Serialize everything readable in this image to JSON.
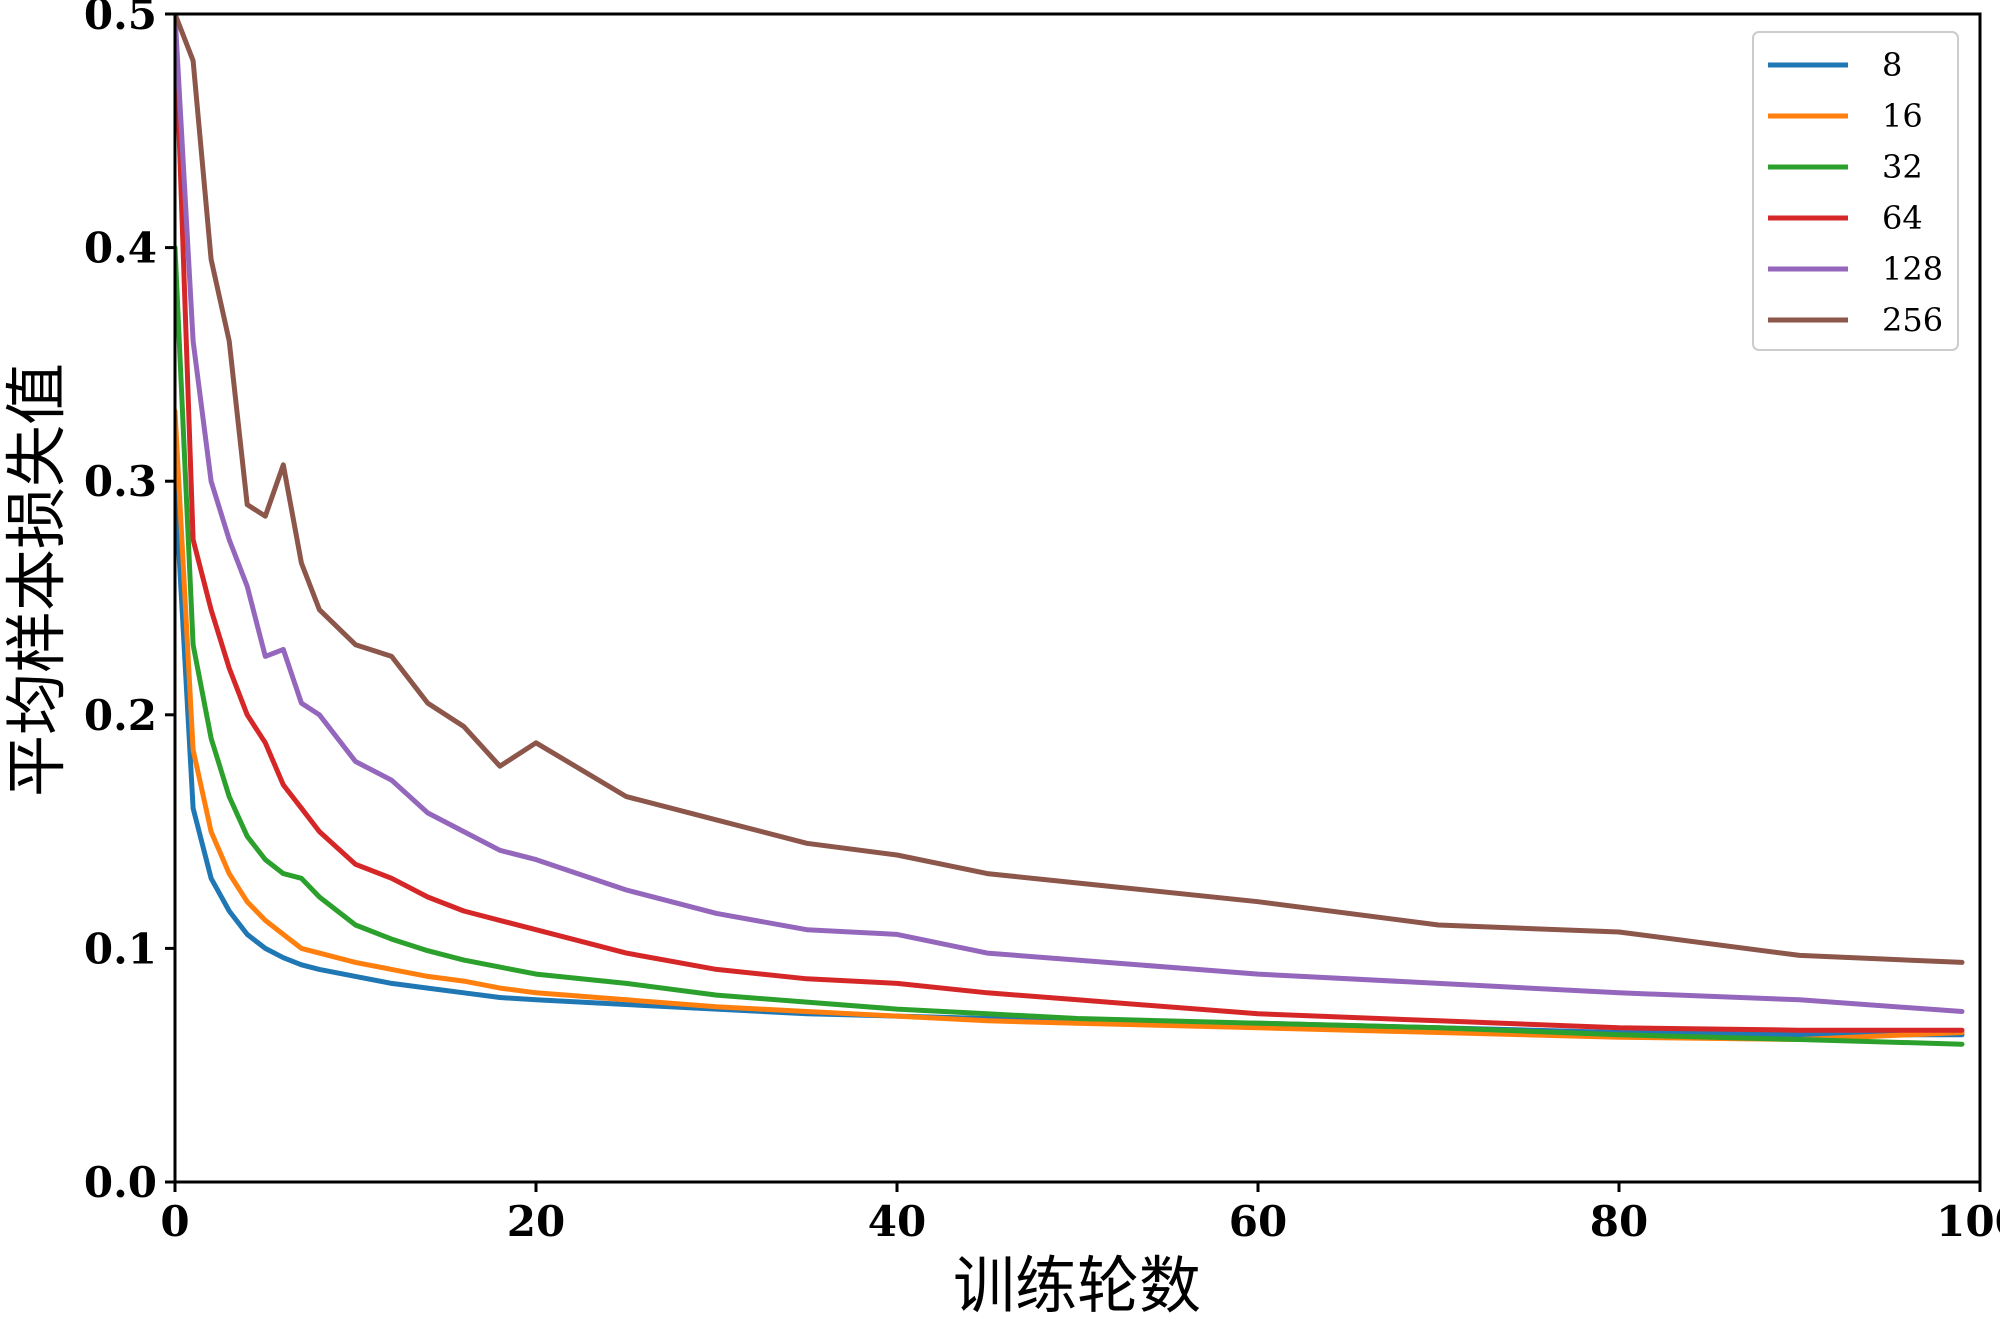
{
  "chart_data": {
    "type": "line",
    "title": "",
    "xlabel": "训练轮数",
    "ylabel": "平均样本损失值",
    "xlim": [
      0,
      100
    ],
    "ylim": [
      0.0,
      0.5
    ],
    "x_ticks": [
      "0",
      "20",
      "40",
      "60",
      "80",
      "100"
    ],
    "y_ticks": [
      "0.0",
      "0.1",
      "0.2",
      "0.3",
      "0.4",
      "0.5"
    ],
    "grid": false,
    "legend_position": "top-right",
    "x": [
      0,
      1,
      2,
      3,
      4,
      5,
      6,
      7,
      8,
      10,
      12,
      14,
      16,
      18,
      20,
      25,
      30,
      35,
      40,
      45,
      50,
      60,
      70,
      80,
      90,
      99
    ],
    "series": [
      {
        "name": "8",
        "color": "#1f77b4",
        "values": [
          0.3,
          0.16,
          0.13,
          0.116,
          0.106,
          0.1,
          0.096,
          0.093,
          0.091,
          0.088,
          0.085,
          0.083,
          0.081,
          0.079,
          0.078,
          0.076,
          0.074,
          0.072,
          0.071,
          0.07,
          0.069,
          0.068,
          0.066,
          0.064,
          0.063,
          0.063
        ]
      },
      {
        "name": "16",
        "color": "#ff7f0e",
        "values": [
          0.33,
          0.185,
          0.15,
          0.132,
          0.12,
          0.112,
          0.106,
          0.1,
          0.098,
          0.094,
          0.091,
          0.088,
          0.086,
          0.083,
          0.081,
          0.078,
          0.075,
          0.073,
          0.071,
          0.069,
          0.068,
          0.066,
          0.064,
          0.062,
          0.061,
          0.064
        ]
      },
      {
        "name": "32",
        "color": "#2ca02c",
        "values": [
          0.4,
          0.23,
          0.19,
          0.165,
          0.148,
          0.138,
          0.132,
          0.13,
          0.122,
          0.11,
          0.104,
          0.099,
          0.095,
          0.092,
          0.089,
          0.085,
          0.08,
          0.077,
          0.074,
          0.072,
          0.07,
          0.068,
          0.066,
          0.063,
          0.061,
          0.059
        ]
      },
      {
        "name": "64",
        "color": "#d62728",
        "values": [
          0.5,
          0.275,
          0.245,
          0.22,
          0.2,
          0.188,
          0.17,
          0.16,
          0.15,
          0.136,
          0.13,
          0.122,
          0.116,
          0.112,
          0.108,
          0.098,
          0.091,
          0.087,
          0.085,
          0.081,
          0.078,
          0.072,
          0.069,
          0.066,
          0.065,
          0.065
        ]
      },
      {
        "name": "128",
        "color": "#9467bd",
        "values": [
          0.5,
          0.36,
          0.3,
          0.275,
          0.255,
          0.225,
          0.228,
          0.205,
          0.2,
          0.18,
          0.172,
          0.158,
          0.15,
          0.142,
          0.138,
          0.125,
          0.115,
          0.108,
          0.106,
          0.098,
          0.095,
          0.089,
          0.085,
          0.081,
          0.078,
          0.073
        ]
      },
      {
        "name": "256",
        "color": "#8c564b",
        "values": [
          0.5,
          0.48,
          0.395,
          0.36,
          0.29,
          0.285,
          0.307,
          0.265,
          0.245,
          0.23,
          0.225,
          0.205,
          0.195,
          0.178,
          0.188,
          0.165,
          0.155,
          0.145,
          0.14,
          0.132,
          0.128,
          0.12,
          0.11,
          0.107,
          0.097,
          0.094
        ]
      }
    ]
  }
}
